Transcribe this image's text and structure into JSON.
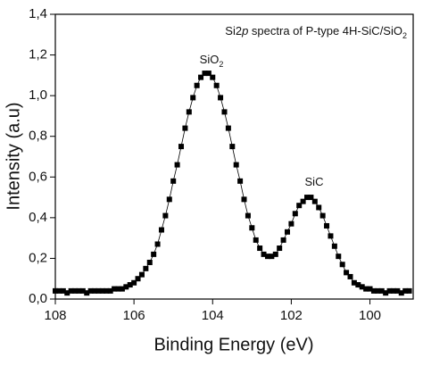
{
  "chart_data": {
    "type": "line",
    "marker": "square",
    "color": "#000000",
    "title": [
      "Si2",
      "p",
      " spectra of P-type 4H-SiC/SiO",
      "2"
    ],
    "annotations": [
      [
        "SiO",
        "2"
      ],
      [
        "SiC"
      ]
    ],
    "xlabel": "Binding Energy (eV)",
    "ylabel": "Intensity (a.u)",
    "xlim": [
      108,
      98.9
    ],
    "ylim": [
      0,
      1.4
    ],
    "xticks": [
      108,
      106,
      104,
      102,
      100
    ],
    "yticks": [
      {
        "value": 0,
        "label": "0,0"
      },
      {
        "value": 0.2,
        "label": "0,2"
      },
      {
        "value": 0.4,
        "label": "0,4"
      },
      {
        "value": 0.6,
        "label": "0,6"
      },
      {
        "value": 0.8,
        "label": "0,8"
      },
      {
        "value": 1.0,
        "label": "1,0"
      },
      {
        "value": 1.2,
        "label": "1,2"
      },
      {
        "value": 1.4,
        "label": "1,4"
      }
    ],
    "x": [
      108.0,
      107.9,
      107.8,
      107.7,
      107.6,
      107.5,
      107.4,
      107.3,
      107.2,
      107.1,
      107.0,
      106.9,
      106.8,
      106.7,
      106.6,
      106.5,
      106.4,
      106.3,
      106.2,
      106.1,
      106.0,
      105.9,
      105.8,
      105.7,
      105.6,
      105.5,
      105.4,
      105.3,
      105.2,
      105.1,
      105.0,
      104.9,
      104.8,
      104.7,
      104.6,
      104.5,
      104.4,
      104.3,
      104.2,
      104.1,
      104.0,
      103.9,
      103.8,
      103.7,
      103.6,
      103.5,
      103.4,
      103.3,
      103.2,
      103.1,
      103.0,
      102.9,
      102.8,
      102.7,
      102.6,
      102.5,
      102.4,
      102.3,
      102.2,
      102.1,
      102.0,
      101.9,
      101.8,
      101.7,
      101.6,
      101.5,
      101.4,
      101.3,
      101.2,
      101.1,
      101.0,
      100.9,
      100.8,
      100.7,
      100.6,
      100.5,
      100.4,
      100.3,
      100.2,
      100.1,
      100.0,
      99.9,
      99.8,
      99.7,
      99.6,
      99.5,
      99.4,
      99.3,
      99.2,
      99.1,
      99.0
    ],
    "values": [
      0.04,
      0.04,
      0.04,
      0.03,
      0.04,
      0.04,
      0.04,
      0.04,
      0.03,
      0.04,
      0.04,
      0.04,
      0.04,
      0.04,
      0.04,
      0.05,
      0.05,
      0.05,
      0.06,
      0.07,
      0.08,
      0.1,
      0.12,
      0.15,
      0.18,
      0.22,
      0.27,
      0.34,
      0.41,
      0.49,
      0.58,
      0.66,
      0.75,
      0.84,
      0.92,
      0.99,
      1.05,
      1.09,
      1.11,
      1.11,
      1.09,
      1.05,
      0.99,
      0.92,
      0.84,
      0.75,
      0.66,
      0.58,
      0.49,
      0.41,
      0.35,
      0.29,
      0.25,
      0.22,
      0.21,
      0.21,
      0.22,
      0.25,
      0.29,
      0.33,
      0.37,
      0.42,
      0.46,
      0.48,
      0.5,
      0.5,
      0.48,
      0.45,
      0.41,
      0.36,
      0.31,
      0.26,
      0.21,
      0.17,
      0.13,
      0.11,
      0.08,
      0.07,
      0.06,
      0.05,
      0.05,
      0.04,
      0.04,
      0.04,
      0.03,
      0.04,
      0.04,
      0.04,
      0.03,
      0.04,
      0.04
    ]
  }
}
